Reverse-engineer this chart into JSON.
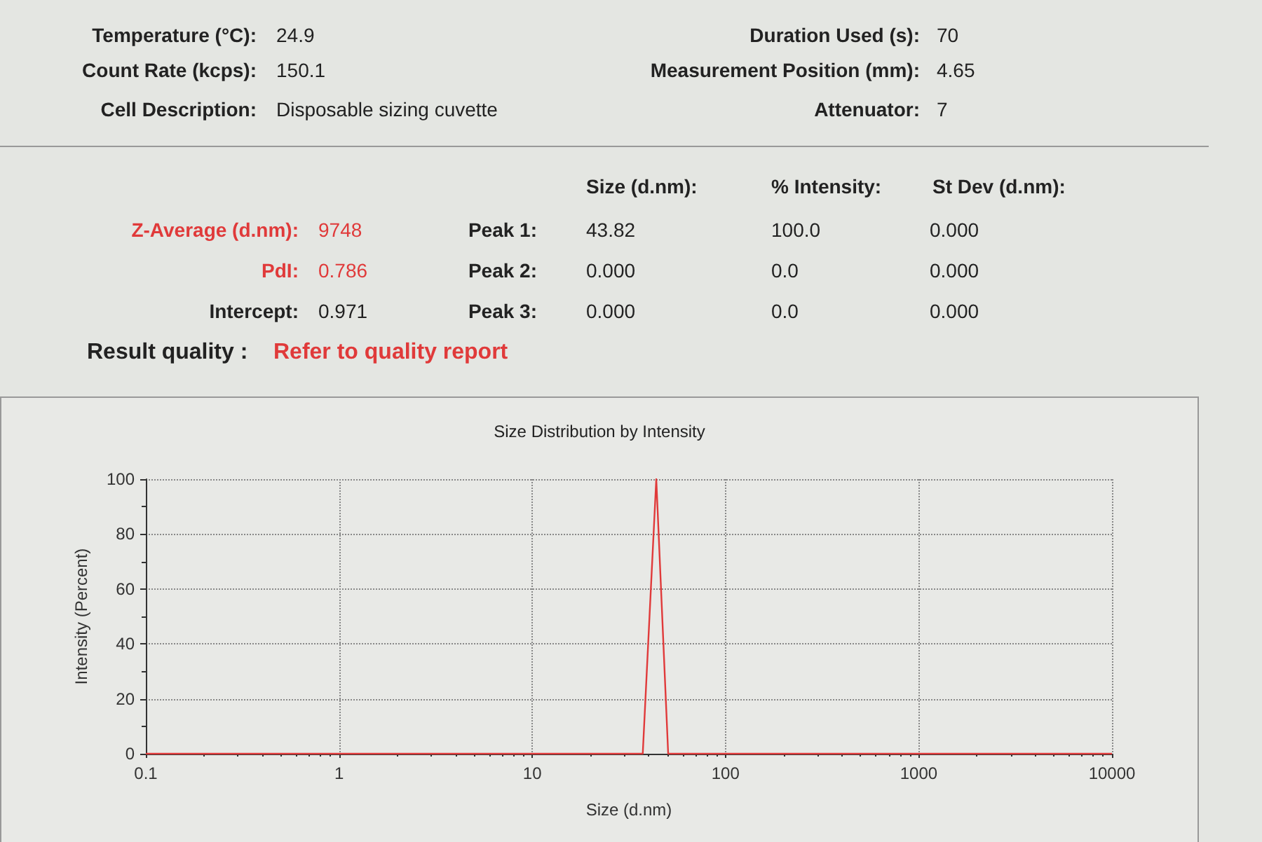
{
  "chart_data": {
    "type": "line",
    "title": "Size Distribution by Intensity",
    "xlabel": "Size (d.nm)",
    "ylabel": "Intensity (Percent)",
    "log": "x",
    "xlim": [
      0.1,
      10000
    ],
    "xticks": [
      0.1,
      1,
      10,
      100,
      1000,
      10000
    ],
    "ylim": [
      0,
      100
    ],
    "yticks": [
      0,
      20,
      40,
      60,
      80,
      100
    ],
    "grid": true,
    "marker": "none",
    "line_style": "solid",
    "series": [
      {
        "color": "#e03a3a",
        "x": [
          0.1,
          37.3,
          43.82,
          50.5,
          10000
        ],
        "values": [
          0,
          0,
          100,
          0,
          0
        ]
      }
    ],
    "annotations": [
      "Temperature (°C):",
      "24.9",
      "Duration Used (s):",
      "70",
      "Count Rate (kcps):",
      "150.1",
      "Measurement Position (mm):",
      "4.65",
      "Cell Description:",
      "Disposable sizing cuvette",
      "Attenuator:",
      "7",
      "Size (d.nm):",
      "% Intensity:",
      "St Dev (d.nm):",
      "Z-Average (d.nm):",
      "9748",
      "Peak 1:",
      "43.82",
      "100.0",
      "0.000",
      "PdI:",
      "0.786",
      "Peak 2:",
      "0.000",
      "0.0",
      "0.000",
      "Intercept:",
      "0.971",
      "Peak 3:",
      "0.000",
      "0.0",
      "0.000",
      "Result quality :",
      "Refer to quality report"
    ]
  }
}
